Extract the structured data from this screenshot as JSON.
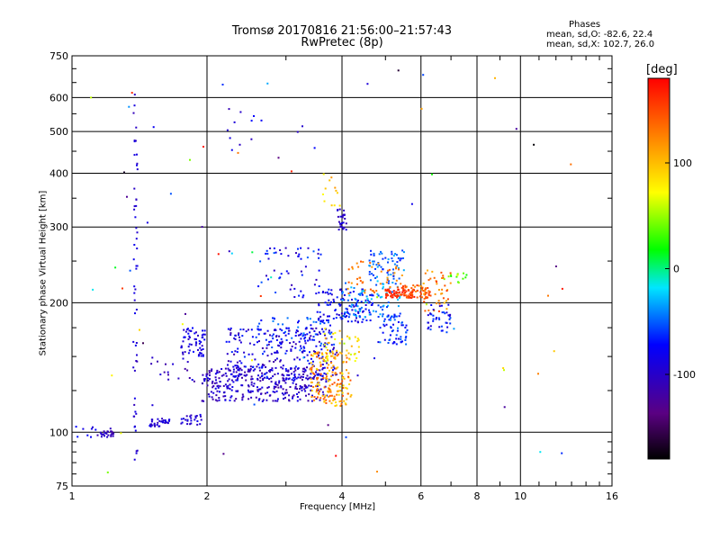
{
  "header": {
    "title_line1": "Tromsø 20170816 21:56:00–21:57:43",
    "title_line2": "RwPretec (8p)",
    "stats_title": "Phases",
    "stats_o": "mean, sd,O: -82.6, 22.4",
    "stats_x": "mean, sd,X: 102.7, 26.0"
  },
  "chart_data": {
    "type": "scatter",
    "xlabel": "Frequency [MHz]",
    "ylabel": "Stationary phase Virtual Height [km]",
    "xscale": "log",
    "yscale": "log",
    "xlim": [
      1,
      16
    ],
    "ylim": [
      75,
      750
    ],
    "x_ticks": [
      1,
      2,
      4,
      6,
      8,
      10,
      16
    ],
    "x_tick_labels": [
      "1",
      "2",
      "4",
      "6",
      "8",
      "10",
      "16"
    ],
    "y_ticks": [
      75,
      100,
      200,
      300,
      400,
      500,
      600,
      750
    ],
    "y_tick_labels": [
      "75",
      "100",
      "200",
      "300",
      "400",
      "500",
      "600",
      "750"
    ],
    "grid": true,
    "colorbar": {
      "label": "[deg]",
      "range": [
        -180,
        180
      ],
      "ticks": [
        100,
        0,
        -100
      ],
      "tick_labels": [
        "100",
        "0",
        "-100"
      ]
    },
    "series": [
      {
        "clusters": [
          {
            "x": [
              1.0,
              1.13
            ],
            "y": [
              96,
              104
            ],
            "phase": [
              -100,
              -60
            ],
            "n": 8
          },
          {
            "x": [
              1.14,
              1.24
            ],
            "y": [
              97,
              102
            ],
            "phase": [
              -120,
              -90
            ],
            "n": 25
          },
          {
            "x": [
              1.37,
              1.4
            ],
            "y": [
              85,
              630
            ],
            "phase": [
              -110,
              -80
            ],
            "n": 55
          },
          {
            "x": [
              1.49,
              1.65
            ],
            "y": [
              103,
              108
            ],
            "phase": [
              -110,
              -80
            ],
            "n": 35
          },
          {
            "x": [
              1.75,
              1.95
            ],
            "y": [
              104,
              110
            ],
            "phase": [
              -110,
              -80
            ],
            "n": 25
          },
          {
            "x": [
              1.5,
              1.9
            ],
            "y": [
              128,
              150
            ],
            "phase": [
              -120,
              -80
            ],
            "n": 18
          },
          {
            "x": [
              1.75,
              1.98
            ],
            "y": [
              150,
              175
            ],
            "phase": [
              -110,
              -70
            ],
            "n": 60
          },
          {
            "x": [
              1.95,
              3.7
            ],
            "y": [
              118,
              142
            ],
            "phase": [
              -120,
              -80
            ],
            "n": 320
          },
          {
            "x": [
              2.2,
              3.9
            ],
            "y": [
              132,
              175
            ],
            "phase": [
              -120,
              -60
            ],
            "n": 260
          },
          {
            "x": [
              2.5,
              3.8
            ],
            "y": [
              155,
              185
            ],
            "phase": [
              -80,
              -40
            ],
            "n": 70
          },
          {
            "x": [
              2.6,
              3.6
            ],
            "y": [
              205,
              270
            ],
            "phase": [
              -110,
              -50
            ],
            "n": 55
          },
          {
            "x": [
              3.4,
              4.2
            ],
            "y": [
              115,
              155
            ],
            "phase": [
              80,
              150
            ],
            "n": 170
          },
          {
            "x": [
              3.6,
              4.4
            ],
            "y": [
              145,
              175
            ],
            "phase": [
              50,
              110
            ],
            "n": 40
          },
          {
            "x": [
              3.5,
              4.7
            ],
            "y": [
              180,
              215
            ],
            "phase": [
              -100,
              -60
            ],
            "n": 110
          },
          {
            "x": [
              3.9,
              4.1
            ],
            "y": [
              290,
              335
            ],
            "phase": [
              -110,
              -80
            ],
            "n": 25
          },
          {
            "x": [
              3.6,
              4.0
            ],
            "y": [
              330,
              400
            ],
            "phase": [
              70,
              120
            ],
            "n": 12
          },
          {
            "x": [
              4.0,
              5.4
            ],
            "y": [
              185,
              225
            ],
            "phase": [
              -60,
              -20
            ],
            "n": 90
          },
          {
            "x": [
              4.6,
              5.5
            ],
            "y": [
              225,
              265
            ],
            "phase": [
              -70,
              -30
            ],
            "n": 60
          },
          {
            "x": [
              4.1,
              5.5
            ],
            "y": [
              210,
              250
            ],
            "phase": [
              110,
              150
            ],
            "n": 45
          },
          {
            "x": [
              4.8,
              5.6
            ],
            "y": [
              160,
              190
            ],
            "phase": [
              -90,
              -40
            ],
            "n": 60
          },
          {
            "x": [
              5.0,
              5.8
            ],
            "y": [
              205,
              215
            ],
            "phase": [
              150,
              175
            ],
            "n": 70
          },
          {
            "x": [
              5.4,
              6.3
            ],
            "y": [
              205,
              220
            ],
            "phase": [
              120,
              160
            ],
            "n": 45
          },
          {
            "x": [
              6.0,
              7.0
            ],
            "y": [
              190,
              240
            ],
            "phase": [
              100,
              160
            ],
            "n": 50
          },
          {
            "x": [
              6.2,
              7.0
            ],
            "y": [
              170,
              200
            ],
            "phase": [
              -100,
              -50
            ],
            "n": 40
          },
          {
            "x": [
              6.7,
              7.6
            ],
            "y": [
              220,
              235
            ],
            "phase": [
              20,
              50
            ],
            "n": 14
          },
          {
            "x": [
              2.2,
              3.5
            ],
            "y": [
              440,
              620
            ],
            "phase": [
              -110,
              -70
            ],
            "n": 14
          },
          {
            "x": [
              1.1,
              13.0
            ],
            "y": [
              80,
              700
            ],
            "phase": [
              -180,
              180
            ],
            "n": 70
          }
        ]
      }
    ]
  }
}
